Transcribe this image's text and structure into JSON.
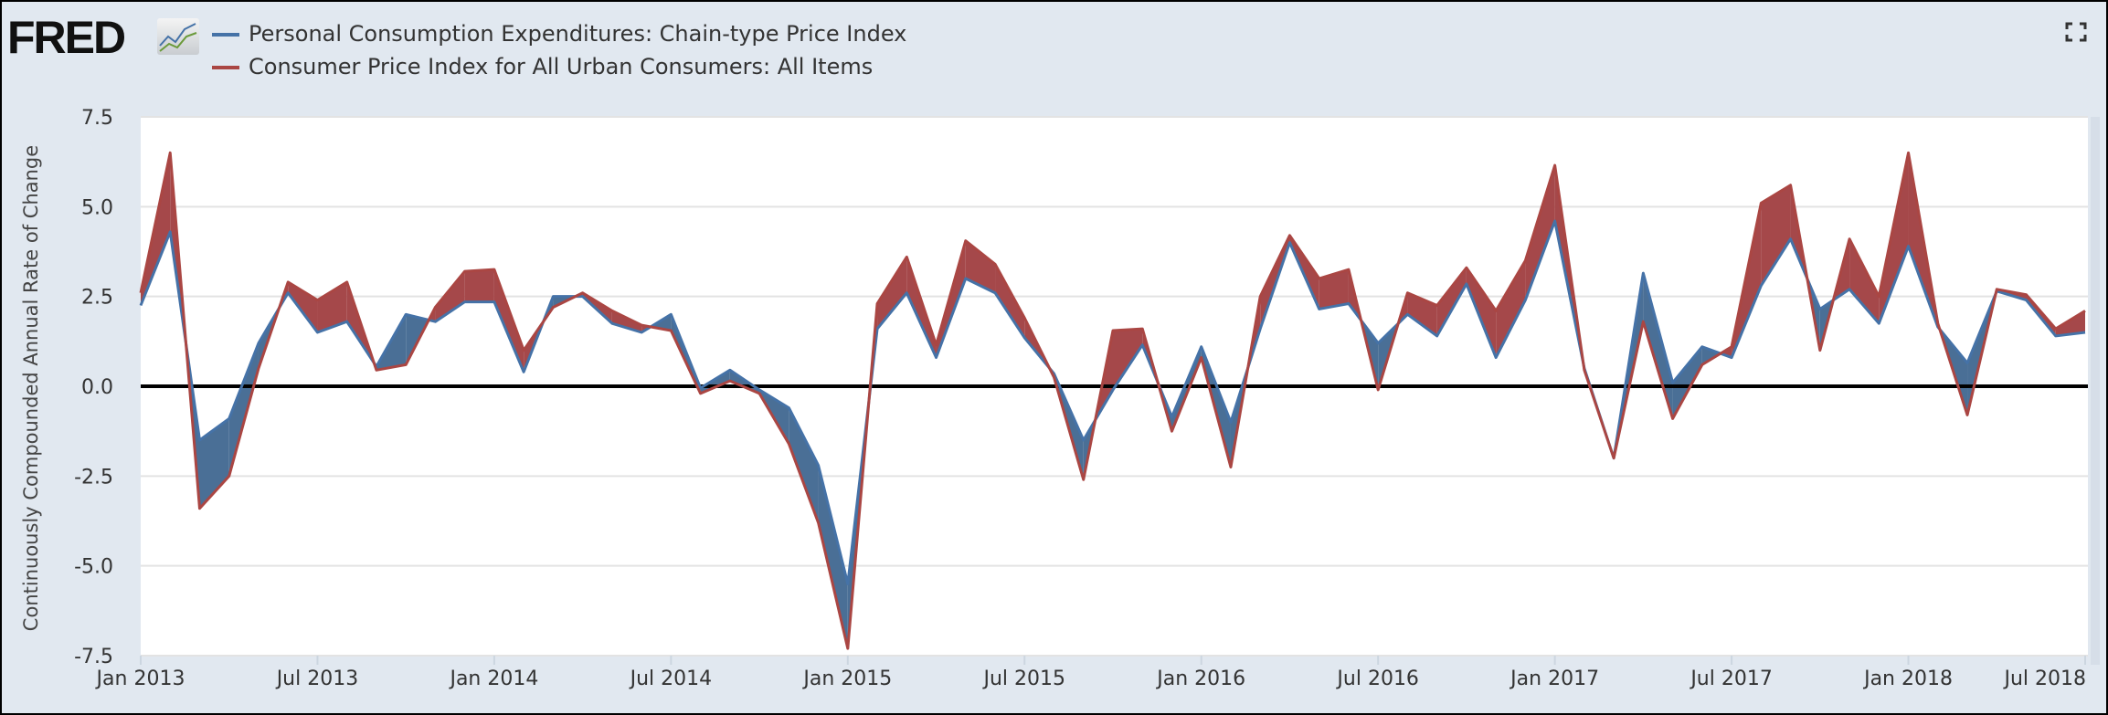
{
  "header": {
    "logo_text": "FRED",
    "expand_icon": "fullscreen-icon"
  },
  "colors": {
    "pce": "#4572a7",
    "cpi": "#aa4643",
    "pce_fill": "#4a6f96",
    "cpi_fill": "#a5484a",
    "background": "#e1e8f0"
  },
  "chart_data": {
    "type": "line",
    "title": "",
    "ylabel": "Continuously Compounded Annual Rate of Change",
    "xlabel": "",
    "ylim": [
      -7.5,
      7.5
    ],
    "yticks": [
      "7.5",
      "5.0",
      "2.5",
      "0.0",
      "-2.5",
      "-5.0",
      "-7.5"
    ],
    "ytick_values": [
      7.5,
      5.0,
      2.5,
      0.0,
      -2.5,
      -5.0,
      -7.5
    ],
    "xticks": [
      "Jan 2013",
      "Jul 2013",
      "Jan 2014",
      "Jul 2014",
      "Jan 2015",
      "Jul 2015",
      "Jan 2016",
      "Jul 2016",
      "Jan 2017",
      "Jul 2017",
      "Jan 2018",
      "Jul 2018"
    ],
    "x_start": "2013-01",
    "x_end": "2018-07",
    "frequency": "monthly",
    "grid": true,
    "legend_placement": "top-left",
    "fill_between": "shaded red where CPI above PCE, blue where PCE above CPI",
    "series": [
      {
        "name": "Personal Consumption Expenditures: Chain-type Price Index",
        "color": "#4572a7",
        "values": [
          2.25,
          4.3,
          -1.5,
          -0.9,
          1.2,
          2.6,
          1.5,
          1.8,
          0.55,
          2.0,
          1.8,
          2.35,
          2.35,
          0.4,
          2.5,
          2.5,
          1.75,
          1.5,
          2.0,
          -0.05,
          0.45,
          -0.1,
          -0.6,
          -2.2,
          -5.5,
          1.6,
          2.6,
          0.8,
          3.0,
          2.6,
          1.35,
          0.35,
          -1.5,
          -0.1,
          1.15,
          -0.85,
          1.1,
          -1.0,
          1.6,
          4.0,
          2.15,
          2.3,
          1.2,
          2.0,
          1.4,
          2.85,
          0.8,
          2.4,
          4.6,
          0.5,
          -2.0,
          3.15,
          0.1,
          1.1,
          0.8,
          2.8,
          4.1,
          2.15,
          2.7,
          1.75,
          3.9,
          1.65,
          0.65,
          2.65,
          2.4,
          1.4,
          1.5
        ]
      },
      {
        "name": "Consumer Price Index for All Urban Consumers: All Items",
        "color": "#aa4643",
        "values": [
          2.6,
          6.5,
          -3.4,
          -2.5,
          0.5,
          2.9,
          2.4,
          2.9,
          0.45,
          0.6,
          2.2,
          3.2,
          3.25,
          1.0,
          2.2,
          2.6,
          2.1,
          1.7,
          1.55,
          -0.2,
          0.15,
          -0.2,
          -1.6,
          -3.8,
          -7.3,
          2.3,
          3.6,
          1.15,
          4.05,
          3.4,
          1.9,
          0.25,
          -2.6,
          1.55,
          1.6,
          -1.25,
          0.8,
          -2.25,
          2.5,
          4.2,
          3.0,
          3.25,
          -0.1,
          2.6,
          2.25,
          3.3,
          2.1,
          3.5,
          6.15,
          0.45,
          -2.0,
          1.8,
          -0.9,
          0.6,
          1.1,
          5.1,
          5.6,
          1.0,
          4.1,
          2.5,
          6.5,
          1.75,
          -0.8,
          2.7,
          2.55,
          1.6,
          2.1
        ]
      }
    ]
  }
}
